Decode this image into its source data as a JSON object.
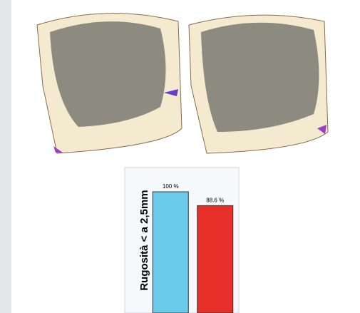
{
  "chart_data": {
    "type": "bar",
    "ylabel": "Rugosità < a 2,5mm",
    "categories": [
      null,
      null
    ],
    "values": [
      100,
      88.6
    ],
    "value_labels": [
      "100 %",
      "88.6 %"
    ],
    "colors": [
      "#6ccbea",
      "#e8302a"
    ],
    "ylim": [
      0,
      120
    ]
  }
}
